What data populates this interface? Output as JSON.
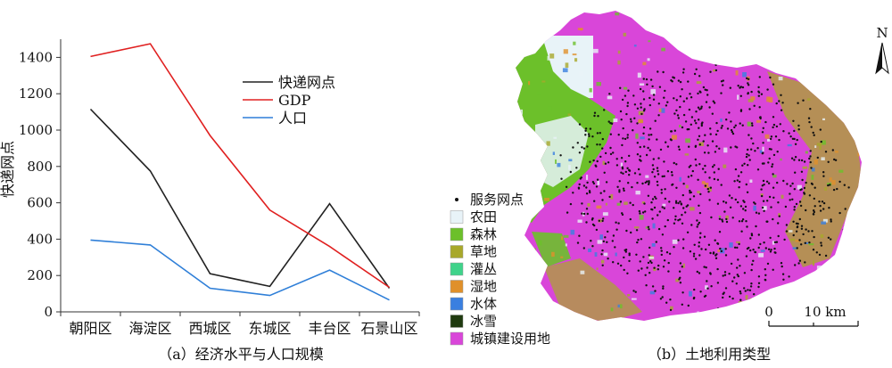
{
  "chart_data": [
    {
      "type": "line",
      "panel_caption": "（a）经济水平与人口规模",
      "ylabel": "快递网点",
      "ylim": [
        0,
        1500
      ],
      "yticks": [
        0,
        200,
        400,
        600,
        800,
        1000,
        1200,
        1400
      ],
      "categories": [
        "朝阳区",
        "海淀区",
        "西城区",
        "东城区",
        "丰台区",
        "石景山区"
      ],
      "legend_position": "top-right",
      "series": [
        {
          "name": "快递网点",
          "color": "#222222",
          "values": [
            1115,
            775,
            210,
            140,
            595,
            130
          ]
        },
        {
          "name": "GDP",
          "color": "#e02020",
          "values": [
            1405,
            1475,
            970,
            560,
            360,
            135
          ]
        },
        {
          "name": "人口",
          "color": "#2f7fd8",
          "values": [
            395,
            368,
            130,
            90,
            230,
            65
          ]
        }
      ]
    },
    {
      "type": "map",
      "panel_caption": "（b）土地利用类型",
      "north_label": "N",
      "scale_bar": {
        "start": "0",
        "end": "10 km"
      },
      "legend": [
        {
          "kind": "point",
          "label": "服务网点",
          "color": "#111111"
        },
        {
          "kind": "area",
          "label": "农田",
          "color": "#e8f3f8"
        },
        {
          "kind": "area",
          "label": "森林",
          "color": "#6cc02a"
        },
        {
          "kind": "area",
          "label": "草地",
          "color": "#a8a82a"
        },
        {
          "kind": "area",
          "label": "灌丛",
          "color": "#3fd38a"
        },
        {
          "kind": "area",
          "label": "湿地",
          "color": "#e0902a"
        },
        {
          "kind": "area",
          "label": "水体",
          "color": "#3a7fe0"
        },
        {
          "kind": "area",
          "label": "冰雪",
          "color": "#1f3a0f"
        },
        {
          "kind": "area",
          "label": "城镇建设用地",
          "color": "#d946d9"
        }
      ]
    }
  ]
}
